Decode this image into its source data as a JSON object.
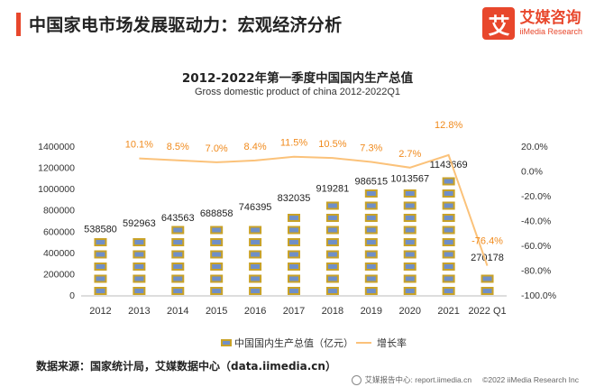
{
  "header": {
    "title": "中国家电市场发展驱动力：宏观经济分析"
  },
  "logo": {
    "mark": "艾",
    "name_cn": "艾媒咨询",
    "name_en": "iiMedia Research"
  },
  "source": "数据来源：国家统计局，艾媒数据中心（data.iimedia.cn）",
  "footer": {
    "left": "艾媒报告中心: report.iimedia.cn",
    "right": "©2022  iiMedia Research  Inc"
  },
  "colors": {
    "accent": "#e8472c",
    "line": "#fbc27a",
    "growth_label": "#f08a1c",
    "bar_gold": "#c9a227",
    "bar_blue": "#6f8fc8"
  },
  "chart_data": {
    "type": "bar",
    "title": "2012-2022年第一季度中国国内生产总值",
    "subtitle": "Gross domestic product of china 2012-2022Q1",
    "categories": [
      "2012",
      "2013",
      "2014",
      "2015",
      "2016",
      "2017",
      "2018",
      "2019",
      "2020",
      "2021",
      "2022 Q1"
    ],
    "series": [
      {
        "name": "中国国内生产总值（亿元）",
        "type": "bar",
        "axis": "left",
        "values": [
          538580,
          592963,
          643563,
          688858,
          746395,
          832035,
          919281,
          986515,
          1013567,
          1143669,
          270178
        ],
        "labels": [
          "538580",
          "592963",
          "643563",
          "688858",
          "746395",
          "832035",
          "919281",
          "986515",
          "1013567",
          "1143669",
          "270178"
        ]
      },
      {
        "name": "增长率",
        "type": "line",
        "axis": "right",
        "values": [
          null,
          10.1,
          8.5,
          7.0,
          8.4,
          11.5,
          10.5,
          7.3,
          2.7,
          12.8,
          -76.4
        ],
        "labels": [
          "",
          "10.1%",
          "8.5%",
          "7.0%",
          "8.4%",
          "11.5%",
          "10.5%",
          "7.3%",
          "2.7%",
          "12.8%",
          "-76.4%"
        ]
      }
    ],
    "ylim": [
      0,
      1400000
    ],
    "yticks": [
      "0",
      "200000",
      "400000",
      "600000",
      "800000",
      "1000000",
      "1200000",
      "1400000"
    ],
    "y2lim": [
      -100,
      20
    ],
    "y2ticks": [
      "-100.0%",
      "-80.0%",
      "-60.0%",
      "-40.0%",
      "-20.0%",
      "0.0%",
      "20.0%"
    ],
    "grid": false,
    "legend_position": "bottom"
  }
}
